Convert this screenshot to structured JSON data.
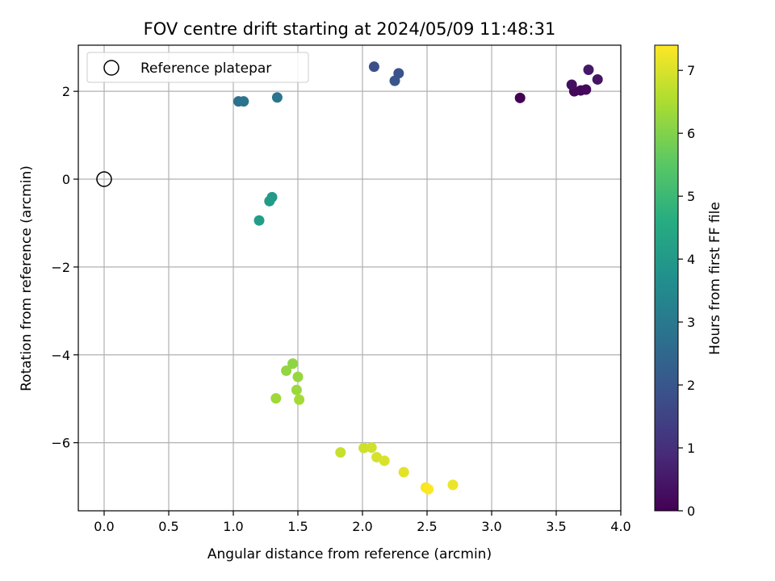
{
  "chart_data": {
    "type": "scatter",
    "title": "FOV centre drift starting at 2024/05/09 11:48:31",
    "xlabel": "Angular distance from reference (arcmin)",
    "ylabel": "Rotation from reference (arcmin)",
    "xlim": [
      -0.2,
      4.0
    ],
    "ylim": [
      -7.55,
      3.05
    ],
    "xticks": [
      0.0,
      0.5,
      1.0,
      1.5,
      2.0,
      2.5,
      3.0,
      3.5,
      4.0
    ],
    "xtick_labels": [
      "0.0",
      "0.5",
      "1.0",
      "1.5",
      "2.0",
      "2.5",
      "3.0",
      "3.5",
      "4.0"
    ],
    "yticks": [
      -6,
      -4,
      -2,
      0,
      2
    ],
    "ytick_labels": [
      "−6",
      "−4",
      "−2",
      "0",
      "2"
    ],
    "grid": true,
    "legend": {
      "placement": "top-left",
      "entries": [
        {
          "label": "Reference platepar",
          "marker": "open-circle"
        }
      ]
    },
    "reference_point": {
      "x": 0.0,
      "y": 0.0
    },
    "colorbar": {
      "label": "Hours from first FF file",
      "colormap": "viridis",
      "range": [
        0,
        7.4
      ],
      "ticks": [
        0,
        1,
        2,
        3,
        4,
        5,
        6,
        7
      ],
      "tick_labels": [
        "0",
        "1",
        "2",
        "3",
        "4",
        "5",
        "6",
        "7"
      ]
    },
    "points": [
      {
        "x": 3.22,
        "y": 1.85,
        "hours": 0.0
      },
      {
        "x": 3.64,
        "y": 2.0,
        "hours": 0.1
      },
      {
        "x": 3.69,
        "y": 2.02,
        "hours": 0.15
      },
      {
        "x": 3.73,
        "y": 2.04,
        "hours": 0.2
      },
      {
        "x": 3.62,
        "y": 2.15,
        "hours": 0.3
      },
      {
        "x": 3.82,
        "y": 2.27,
        "hours": 0.4
      },
      {
        "x": 3.75,
        "y": 2.49,
        "hours": 0.5
      },
      {
        "x": 2.09,
        "y": 2.56,
        "hours": 1.8
      },
      {
        "x": 2.28,
        "y": 2.41,
        "hours": 1.9
      },
      {
        "x": 2.25,
        "y": 2.24,
        "hours": 2.0
      },
      {
        "x": 1.04,
        "y": 1.77,
        "hours": 2.75
      },
      {
        "x": 1.08,
        "y": 1.77,
        "hours": 2.85
      },
      {
        "x": 1.34,
        "y": 1.86,
        "hours": 2.9
      },
      {
        "x": 1.3,
        "y": -0.41,
        "hours": 4.0
      },
      {
        "x": 1.28,
        "y": -0.5,
        "hours": 4.05
      },
      {
        "x": 1.2,
        "y": -0.94,
        "hours": 4.1
      },
      {
        "x": 1.46,
        "y": -4.2,
        "hours": 6.15
      },
      {
        "x": 1.41,
        "y": -4.36,
        "hours": 6.2
      },
      {
        "x": 1.5,
        "y": -4.5,
        "hours": 6.25
      },
      {
        "x": 1.49,
        "y": -4.8,
        "hours": 6.3
      },
      {
        "x": 1.33,
        "y": -4.99,
        "hours": 6.35
      },
      {
        "x": 1.51,
        "y": -5.02,
        "hours": 6.4
      },
      {
        "x": 1.83,
        "y": -6.22,
        "hours": 6.8
      },
      {
        "x": 2.01,
        "y": -6.12,
        "hours": 6.85
      },
      {
        "x": 2.07,
        "y": -6.11,
        "hours": 6.9
      },
      {
        "x": 2.11,
        "y": -6.33,
        "hours": 6.95
      },
      {
        "x": 2.17,
        "y": -6.41,
        "hours": 7.0
      },
      {
        "x": 2.32,
        "y": -6.67,
        "hours": 7.1
      },
      {
        "x": 2.7,
        "y": -6.96,
        "hours": 7.2
      },
      {
        "x": 2.49,
        "y": -7.02,
        "hours": 7.3
      },
      {
        "x": 2.51,
        "y": -7.06,
        "hours": 7.4
      }
    ]
  }
}
